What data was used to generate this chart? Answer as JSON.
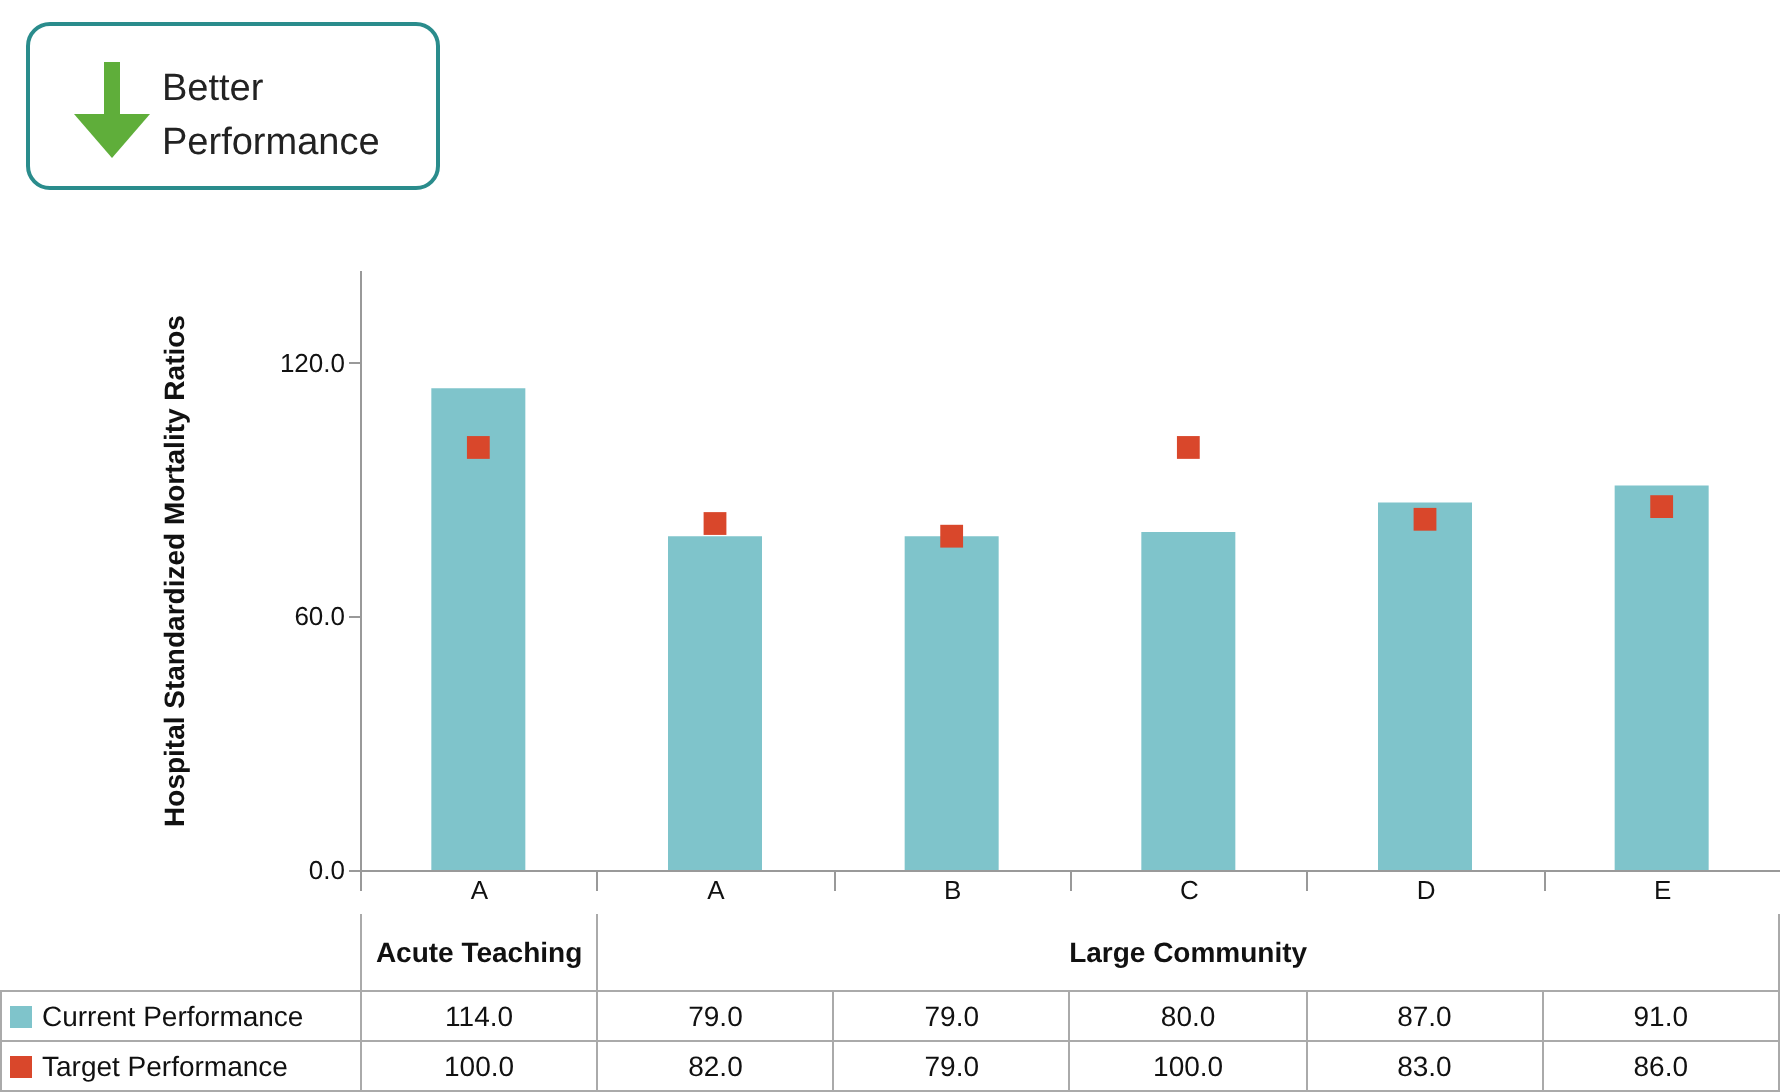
{
  "chart_data": {
    "type": "bar",
    "ylabel": "Hospital  Standardized Mortality Ratios",
    "categories": [
      "A",
      "A",
      "B",
      "C",
      "D",
      "E"
    ],
    "series": [
      {
        "name": "Current Performance",
        "color": "#7fc4cb",
        "values": [
          114.0,
          79.0,
          79.0,
          80.0,
          87.0,
          91.0
        ],
        "value_labels": [
          "114.0",
          "79.0",
          "79.0",
          "80.0",
          "87.0",
          "91.0"
        ]
      },
      {
        "name": "Target Performance",
        "type": "scatter",
        "color": "#d9472b",
        "values": [
          100.0,
          82.0,
          79.0,
          100.0,
          83.0,
          86.0
        ],
        "value_labels": [
          "100.0",
          "82.0",
          "79.0",
          "100.0",
          "83.0",
          "86.0"
        ]
      }
    ],
    "ylim": [
      0,
      142
    ],
    "yticks": [
      {
        "value": 0,
        "label": "0.0"
      },
      {
        "value": 60,
        "label": "60.0"
      },
      {
        "value": 120,
        "label": "120.0"
      }
    ],
    "annotations": [
      "Better Performance",
      "Acute Teaching",
      "Large Community"
    ],
    "legend": "bottom left",
    "grid": false,
    "marker": "square"
  }
}
